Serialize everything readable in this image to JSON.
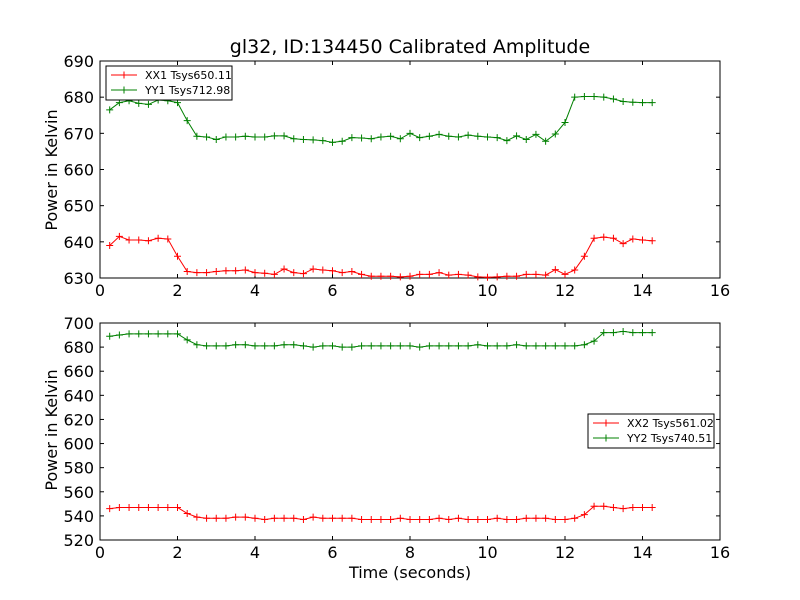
{
  "chart_data": [
    {
      "type": "line",
      "title": "gl32, ID:134450 Calibrated Amplitude",
      "xlabel": "",
      "ylabel": "Power in Kelvin",
      "xlim": [
        0,
        16
      ],
      "ylim": [
        630,
        690
      ],
      "xticks": [
        "0",
        "2",
        "4",
        "6",
        "8",
        "10",
        "12",
        "14",
        "16"
      ],
      "yticks": [
        "630",
        "640",
        "650",
        "660",
        "670",
        "680",
        "690"
      ],
      "legend_position": "top-left",
      "grid": false,
      "x": [
        0.25,
        0.5,
        0.75,
        1.0,
        1.25,
        1.5,
        1.75,
        2.0,
        2.25,
        2.5,
        2.75,
        3.0,
        3.25,
        3.5,
        3.75,
        4.0,
        4.25,
        4.5,
        4.75,
        5.0,
        5.25,
        5.5,
        5.75,
        6.0,
        6.25,
        6.5,
        6.75,
        7.0,
        7.25,
        7.5,
        7.75,
        8.0,
        8.25,
        8.5,
        8.75,
        9.0,
        9.25,
        9.5,
        9.75,
        10.0,
        10.25,
        10.5,
        10.75,
        11.0,
        11.25,
        11.5,
        11.75,
        12.0,
        12.25,
        12.5,
        12.75,
        13.0,
        13.25,
        13.5,
        13.75,
        14.0,
        14.25
      ],
      "series": [
        {
          "name": "XX1 Tsys650.11",
          "color": "#ff0000",
          "marker": "+",
          "values": [
            639.0,
            641.5,
            640.5,
            640.5,
            640.3,
            641.0,
            640.8,
            636.0,
            631.8,
            631.5,
            631.5,
            631.8,
            632.0,
            632.0,
            632.2,
            631.5,
            631.3,
            631.0,
            632.5,
            631.5,
            631.2,
            632.5,
            632.2,
            632.0,
            631.5,
            631.8,
            631.0,
            630.5,
            630.5,
            630.5,
            630.3,
            630.5,
            631.0,
            631.0,
            631.5,
            630.8,
            631.0,
            630.8,
            630.3,
            630.2,
            630.3,
            630.5,
            630.5,
            631.0,
            631.0,
            630.8,
            632.3,
            631.0,
            632.2,
            636.0,
            641.0,
            641.3,
            641.0,
            639.5,
            640.8,
            640.5,
            640.3
          ]
        },
        {
          "name": "YY1 Tsys712.98",
          "color": "#008000",
          "marker": "+",
          "values": [
            676.5,
            678.5,
            679.0,
            678.3,
            678.0,
            679.2,
            679.0,
            678.5,
            673.5,
            669.2,
            669.0,
            668.3,
            669.0,
            669.0,
            669.2,
            669.0,
            669.0,
            669.3,
            669.3,
            668.5,
            668.3,
            668.2,
            668.0,
            667.5,
            667.8,
            668.8,
            668.7,
            668.5,
            669.0,
            669.2,
            668.5,
            670.0,
            668.8,
            669.2,
            669.7,
            669.2,
            669.0,
            669.5,
            669.2,
            669.0,
            668.8,
            668.0,
            669.3,
            668.3,
            669.7,
            667.8,
            669.8,
            673.0,
            680.0,
            680.2,
            680.2,
            680.0,
            679.5,
            678.8,
            678.6,
            678.5,
            678.5
          ]
        }
      ]
    },
    {
      "type": "line",
      "title": "",
      "xlabel": "Time (seconds)",
      "ylabel": "Power in Kelvin",
      "xlim": [
        0,
        16
      ],
      "ylim": [
        520,
        700
      ],
      "xticks": [
        "0",
        "2",
        "4",
        "6",
        "8",
        "10",
        "12",
        "14",
        "16"
      ],
      "yticks": [
        "520",
        "540",
        "560",
        "580",
        "600",
        "620",
        "640",
        "660",
        "680",
        "700"
      ],
      "legend_position": "center-right",
      "grid": false,
      "x": [
        0.25,
        0.5,
        0.75,
        1.0,
        1.25,
        1.5,
        1.75,
        2.0,
        2.25,
        2.5,
        2.75,
        3.0,
        3.25,
        3.5,
        3.75,
        4.0,
        4.25,
        4.5,
        4.75,
        5.0,
        5.25,
        5.5,
        5.75,
        6.0,
        6.25,
        6.5,
        6.75,
        7.0,
        7.25,
        7.5,
        7.75,
        8.0,
        8.25,
        8.5,
        8.75,
        9.0,
        9.25,
        9.5,
        9.75,
        10.0,
        10.25,
        10.5,
        10.75,
        11.0,
        11.25,
        11.5,
        11.75,
        12.0,
        12.25,
        12.5,
        12.75,
        13.0,
        13.25,
        13.5,
        13.75,
        14.0,
        14.25
      ],
      "series": [
        {
          "name": "XX2 Tsys561.02",
          "color": "#ff0000",
          "marker": "+",
          "values": [
            546,
            547,
            547,
            547,
            547,
            547,
            547,
            547,
            542,
            539,
            538,
            538,
            538,
            539,
            539,
            538,
            537,
            538,
            538,
            538,
            537,
            539,
            538,
            538,
            538,
            538,
            537,
            537,
            537,
            537,
            538,
            537,
            537,
            537,
            538,
            537,
            538,
            537,
            537,
            537,
            538,
            537,
            537,
            538,
            538,
            538,
            537,
            537,
            538,
            541,
            548,
            548,
            547,
            546,
            547,
            547,
            547
          ]
        },
        {
          "name": "YY2 Tsys740.51",
          "color": "#008000",
          "marker": "+",
          "values": [
            689,
            690,
            691,
            691,
            691,
            691,
            691,
            691,
            686,
            682,
            681,
            681,
            681,
            682,
            682,
            681,
            681,
            681,
            682,
            682,
            681,
            680,
            681,
            681,
            680,
            680,
            681,
            681,
            681,
            681,
            681,
            681,
            680,
            681,
            681,
            681,
            681,
            681,
            682,
            681,
            681,
            681,
            682,
            681,
            681,
            681,
            681,
            681,
            681,
            682,
            685,
            692,
            692,
            693,
            692,
            692,
            692
          ]
        }
      ]
    }
  ]
}
